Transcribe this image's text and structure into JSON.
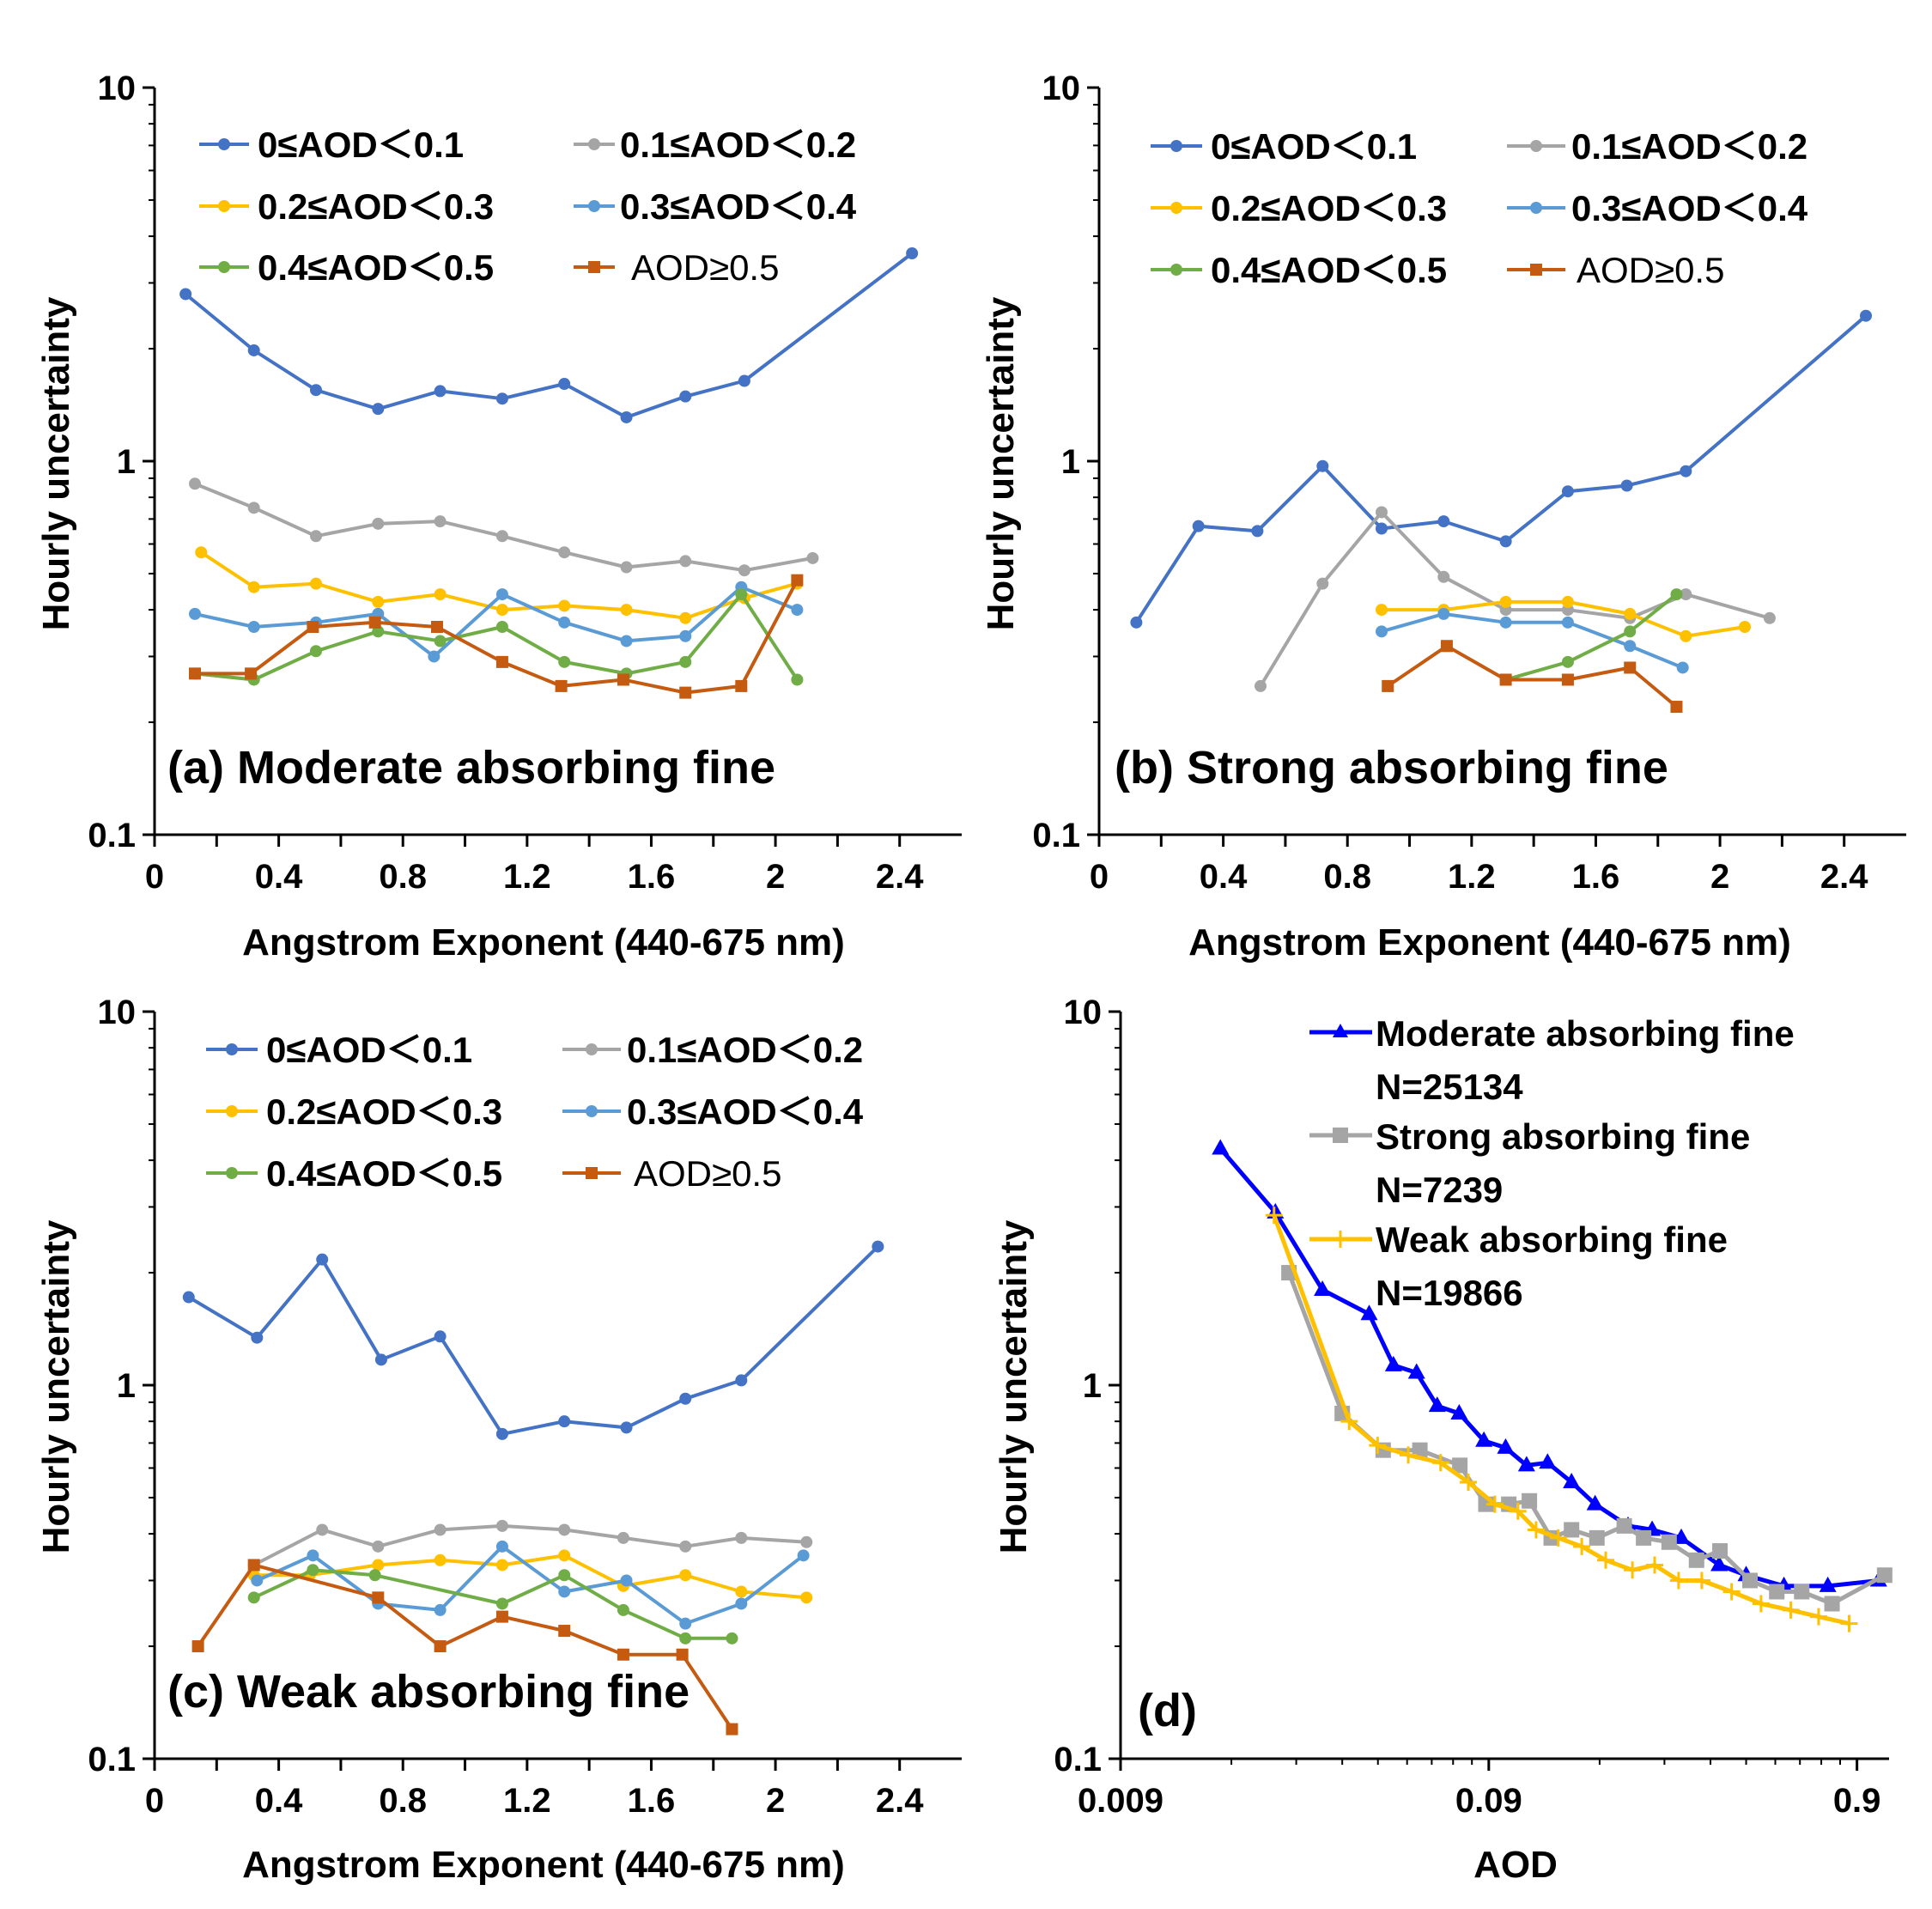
{
  "chart_data": [
    {
      "panel": "a",
      "type": "line",
      "title": "(a) Moderate absorbing fine",
      "xlabel": "Angstrom Exponent (440-675 nm)",
      "ylabel": "Hourly uncertainty",
      "xscale": "linear",
      "yscale": "log",
      "xlim": [
        0,
        2.6
      ],
      "ylim": [
        0.1,
        10
      ],
      "xticks": [
        0,
        0.4,
        0.8,
        1.2,
        1.6,
        2,
        2.4
      ],
      "xtick_labels": [
        "0",
        "0.4",
        "0.8",
        "1.2",
        "1.6",
        "2",
        "2.4"
      ],
      "yticks": [
        0.1,
        1,
        10
      ],
      "ytick_labels": [
        "0.1",
        "1",
        "10"
      ],
      "legend_position": "top",
      "series": [
        {
          "name": "0≤AOD＜0.1",
          "color": "#4472C4",
          "marker": "circle",
          "x": [
            0.1,
            0.32,
            0.52,
            0.72,
            0.92,
            1.12,
            1.32,
            1.52,
            1.71,
            1.9,
            2.44
          ],
          "y": [
            2.8,
            1.98,
            1.55,
            1.38,
            1.54,
            1.47,
            1.61,
            1.31,
            1.49,
            1.64,
            3.6
          ]
        },
        {
          "name": "0.1≤AOD＜0.2",
          "color": "#A5A5A5",
          "marker": "circle",
          "x": [
            0.13,
            0.32,
            0.52,
            0.72,
            0.92,
            1.12,
            1.32,
            1.52,
            1.71,
            1.9,
            2.12
          ],
          "y": [
            0.87,
            0.75,
            0.63,
            0.68,
            0.69,
            0.63,
            0.57,
            0.52,
            0.54,
            0.51,
            0.55
          ]
        },
        {
          "name": "0.2≤AOD＜0.3",
          "color": "#FFC000",
          "marker": "circle",
          "x": [
            0.15,
            0.32,
            0.52,
            0.72,
            0.92,
            1.12,
            1.32,
            1.52,
            1.71,
            1.9,
            2.07
          ],
          "y": [
            0.57,
            0.46,
            0.47,
            0.42,
            0.44,
            0.4,
            0.41,
            0.4,
            0.38,
            0.43,
            0.47
          ]
        },
        {
          "name": "0.3≤AOD＜0.4",
          "color": "#5B9BD5",
          "marker": "circle",
          "x": [
            0.13,
            0.32,
            0.52,
            0.72,
            0.9,
            1.12,
            1.32,
            1.52,
            1.71,
            1.89,
            2.07
          ],
          "y": [
            0.39,
            0.36,
            0.37,
            0.39,
            0.3,
            0.44,
            0.37,
            0.33,
            0.34,
            0.46,
            0.4
          ]
        },
        {
          "name": "0.4≤AOD＜0.5",
          "color": "#70AD47",
          "marker": "circle",
          "x": [
            0.13,
            0.32,
            0.52,
            0.72,
            0.92,
            1.12,
            1.32,
            1.52,
            1.71,
            1.89,
            2.07
          ],
          "y": [
            0.27,
            0.26,
            0.31,
            0.35,
            0.33,
            0.36,
            0.29,
            0.27,
            0.29,
            0.44,
            0.26
          ]
        },
        {
          "name": "AOD≥0.5",
          "color": "#C55A11",
          "marker": "square",
          "x": [
            0.13,
            0.31,
            0.51,
            0.71,
            0.91,
            1.12,
            1.31,
            1.51,
            1.71,
            1.89,
            2.07
          ],
          "y": [
            0.27,
            0.27,
            0.36,
            0.37,
            0.36,
            0.29,
            0.25,
            0.26,
            0.24,
            0.25,
            0.48
          ]
        }
      ]
    },
    {
      "panel": "b",
      "type": "line",
      "title": "(b) Strong absorbing fine",
      "xlabel": "Angstrom Exponent (440-675 nm)",
      "ylabel": "Hourly uncertainty",
      "xscale": "linear",
      "yscale": "log",
      "xlim": [
        0,
        2.6
      ],
      "ylim": [
        0.1,
        10
      ],
      "xticks": [
        0,
        0.4,
        0.8,
        1.2,
        1.6,
        2,
        2.4
      ],
      "xtick_labels": [
        "0",
        "0.4",
        "0.8",
        "1.2",
        "1.6",
        "2",
        "2.4"
      ],
      "yticks": [
        0.1,
        1,
        10
      ],
      "ytick_labels": [
        "0.1",
        "1",
        "10"
      ],
      "legend_position": "top",
      "series": [
        {
          "name": "0≤AOD＜0.1",
          "color": "#4472C4",
          "marker": "circle",
          "x": [
            0.12,
            0.32,
            0.51,
            0.72,
            0.91,
            1.11,
            1.31,
            1.51,
            1.7,
            1.89,
            2.47
          ],
          "y": [
            0.37,
            0.67,
            0.65,
            0.97,
            0.66,
            0.69,
            0.61,
            0.83,
            0.86,
            0.94,
            2.45
          ]
        },
        {
          "name": "0.1≤AOD＜0.2",
          "color": "#A5A5A5",
          "marker": "circle",
          "x": [
            0.52,
            0.72,
            0.91,
            1.11,
            1.31,
            1.51,
            1.71,
            1.89,
            2.16
          ],
          "y": [
            0.25,
            0.47,
            0.73,
            0.49,
            0.4,
            0.4,
            0.38,
            0.44,
            0.38
          ]
        },
        {
          "name": "0.2≤AOD＜0.3",
          "color": "#FFC000",
          "marker": "circle",
          "x": [
            0.91,
            1.11,
            1.31,
            1.51,
            1.71,
            1.89,
            2.08
          ],
          "y": [
            0.4,
            0.4,
            0.42,
            0.42,
            0.39,
            0.34,
            0.36
          ]
        },
        {
          "name": "0.3≤AOD＜0.4",
          "color": "#5B9BD5",
          "marker": "circle",
          "x": [
            0.91,
            1.11,
            1.31,
            1.51,
            1.71,
            1.88
          ],
          "y": [
            0.35,
            0.39,
            0.37,
            0.37,
            0.32,
            0.28
          ]
        },
        {
          "name": "0.4≤AOD＜0.5",
          "color": "#70AD47",
          "marker": "circle",
          "x": [
            1.31,
            1.51,
            1.71,
            1.86
          ],
          "y": [
            0.26,
            0.29,
            0.35,
            0.44
          ]
        },
        {
          "name": "AOD≥0.5",
          "color": "#C55A11",
          "marker": "square",
          "x": [
            0.93,
            1.12,
            1.31,
            1.51,
            1.71,
            1.86
          ],
          "y": [
            0.25,
            0.32,
            0.26,
            0.26,
            0.28,
            0.22
          ]
        }
      ]
    },
    {
      "panel": "c",
      "type": "line",
      "title": "(c) Weak absorbing fine",
      "xlabel": "Angstrom Exponent (440-675 nm)",
      "ylabel": "Hourly uncertainty",
      "xscale": "linear",
      "yscale": "log",
      "xlim": [
        0,
        2.6
      ],
      "ylim": [
        0.1,
        10
      ],
      "xticks": [
        0,
        0.4,
        0.8,
        1.2,
        1.6,
        2,
        2.4
      ],
      "xtick_labels": [
        "0",
        "0.4",
        "0.8",
        "1.2",
        "1.6",
        "2",
        "2.4"
      ],
      "yticks": [
        0.1,
        1,
        10
      ],
      "ytick_labels": [
        "0.1",
        "1",
        "10"
      ],
      "legend_position": "top",
      "series": [
        {
          "name": "0≤AOD＜0.1",
          "color": "#4472C4",
          "marker": "circle",
          "x": [
            0.11,
            0.33,
            0.54,
            0.73,
            0.92,
            1.12,
            1.32,
            1.52,
            1.71,
            1.89,
            2.33
          ],
          "y": [
            1.72,
            1.34,
            2.17,
            1.17,
            1.35,
            0.74,
            0.8,
            0.77,
            0.92,
            1.03,
            2.35
          ]
        },
        {
          "name": "0.1≤AOD＜0.2",
          "color": "#A5A5A5",
          "marker": "circle",
          "x": [
            0.32,
            0.54,
            0.72,
            0.92,
            1.12,
            1.32,
            1.51,
            1.71,
            1.89,
            2.1
          ],
          "y": [
            0.33,
            0.41,
            0.37,
            0.41,
            0.42,
            0.41,
            0.39,
            0.37,
            0.39,
            0.38
          ]
        },
        {
          "name": "0.2≤AOD＜0.3",
          "color": "#FFC000",
          "marker": "circle",
          "x": [
            0.32,
            0.5,
            0.72,
            0.92,
            1.12,
            1.32,
            1.51,
            1.71,
            1.89,
            2.1
          ],
          "y": [
            0.31,
            0.31,
            0.33,
            0.34,
            0.33,
            0.35,
            0.29,
            0.31,
            0.28,
            0.27
          ]
        },
        {
          "name": "0.3≤AOD＜0.4",
          "color": "#5B9BD5",
          "marker": "circle",
          "x": [
            0.33,
            0.51,
            0.72,
            0.92,
            1.12,
            1.32,
            1.52,
            1.71,
            1.89,
            2.09
          ],
          "y": [
            0.3,
            0.35,
            0.26,
            0.25,
            0.37,
            0.28,
            0.3,
            0.23,
            0.26,
            0.35
          ]
        },
        {
          "name": "0.4≤AOD＜0.5",
          "color": "#70AD47",
          "marker": "circle",
          "x": [
            0.32,
            0.51,
            0.71,
            1.12,
            1.32,
            1.51,
            1.71,
            1.86
          ],
          "y": [
            0.27,
            0.32,
            0.31,
            0.26,
            0.31,
            0.25,
            0.21,
            0.21
          ]
        },
        {
          "name": "AOD≥0.5",
          "color": "#C55A11",
          "marker": "square",
          "x": [
            0.14,
            0.32,
            0.72,
            0.92,
            1.12,
            1.32,
            1.51,
            1.7,
            1.86
          ],
          "y": [
            0.2,
            0.33,
            0.27,
            0.2,
            0.24,
            0.22,
            0.19,
            0.19,
            0.12
          ]
        }
      ]
    },
    {
      "panel": "d",
      "type": "line",
      "title": "(d)",
      "xlabel": "AOD",
      "ylabel": "Hourly uncertainty",
      "xscale": "log",
      "yscale": "log",
      "xlim": [
        0.009,
        1.1
      ],
      "ylim": [
        0.1,
        10
      ],
      "xticks": [
        0.009,
        0.09,
        0.9
      ],
      "xtick_labels": [
        "0.009",
        "0.09",
        "0.9"
      ],
      "yticks": [
        0.1,
        1,
        10
      ],
      "ytick_labels": [
        "0.1",
        "1",
        "10"
      ],
      "legend_position": "top-right",
      "series": [
        {
          "name": "Moderate absorbing fine",
          "note": "N=25134",
          "color": "#0000FF",
          "marker": "triangle",
          "x": [
            0.0168,
            0.0237,
            0.0318,
            0.0426,
            0.0496,
            0.0573,
            0.0652,
            0.0748,
            0.0873,
            0.1,
            0.114,
            0.13,
            0.151,
            0.175,
            0.215,
            0.25,
            0.3,
            0.38,
            0.45,
            0.57,
            0.75,
            1.03
          ],
          "y": [
            4.3,
            2.9,
            1.8,
            1.55,
            1.13,
            1.08,
            0.88,
            0.84,
            0.71,
            0.68,
            0.61,
            0.62,
            0.55,
            0.48,
            0.42,
            0.41,
            0.39,
            0.33,
            0.31,
            0.29,
            0.29,
            0.3
          ]
        },
        {
          "name": "Strong absorbing fine",
          "note": "N=7239",
          "color": "#A5A5A5",
          "marker": "square",
          "x": [
            0.0258,
            0.036,
            0.0465,
            0.0585,
            0.0751,
            0.0884,
            0.102,
            0.116,
            0.133,
            0.151,
            0.177,
            0.21,
            0.237,
            0.278,
            0.33,
            0.382,
            0.461,
            0.545,
            0.637,
            0.77,
            1.07
          ],
          "y": [
            2.0,
            0.84,
            0.67,
            0.67,
            0.61,
            0.48,
            0.48,
            0.49,
            0.39,
            0.41,
            0.39,
            0.42,
            0.39,
            0.38,
            0.34,
            0.36,
            0.3,
            0.28,
            0.28,
            0.26,
            0.31
          ]
        },
        {
          "name": "Weak absorbing fine",
          "note": "N=19866",
          "color": "#FFC000",
          "marker": "plus",
          "x": [
            0.0235,
            0.0376,
            0.0449,
            0.0544,
            0.0666,
            0.0792,
            0.0935,
            0.108,
            0.121,
            0.139,
            0.161,
            0.187,
            0.221,
            0.254,
            0.295,
            0.341,
            0.411,
            0.494,
            0.595,
            0.708,
            0.857
          ],
          "y": [
            2.85,
            0.8,
            0.69,
            0.65,
            0.62,
            0.55,
            0.48,
            0.46,
            0.41,
            0.39,
            0.37,
            0.34,
            0.32,
            0.33,
            0.3,
            0.3,
            0.28,
            0.26,
            0.25,
            0.24,
            0.23
          ]
        }
      ]
    }
  ]
}
